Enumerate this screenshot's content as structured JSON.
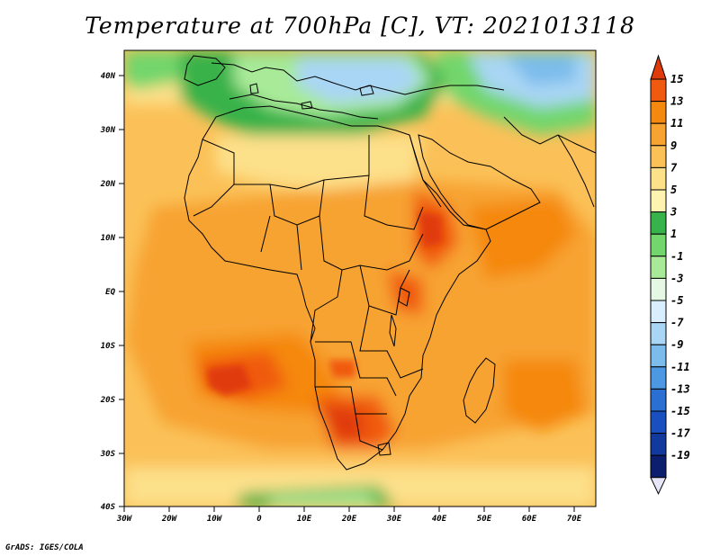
{
  "title": "Temperature at 700hPa [C], VT: 2021013118",
  "credit": "GrADS: IGES/COLA",
  "map": {
    "lat_labels": [
      "40N",
      "30N",
      "20N",
      "10N",
      "EQ",
      "10S",
      "20S",
      "30S",
      "40S"
    ],
    "lon_labels": [
      "30W",
      "20W",
      "10W",
      "0",
      "10E",
      "20E",
      "30E",
      "40E",
      "50E",
      "60E",
      "70E"
    ]
  },
  "colorbar": {
    "labels": [
      "15",
      "13",
      "11",
      "9",
      "7",
      "5",
      "3",
      "1",
      "-1",
      "-3",
      "-5",
      "-7",
      "-9",
      "-11",
      "-13",
      "-15",
      "-17",
      "-19"
    ],
    "colors": [
      "#e03a0a",
      "#f05a10",
      "#f5880f",
      "#f7a332",
      "#fbc158",
      "#fde08a",
      "#fef4b0",
      "#38b24a",
      "#72d66c",
      "#a8ea98",
      "#e4f8e4",
      "#d8eefc",
      "#a9d6f4",
      "#7cbcec",
      "#4d98e2",
      "#2c6fd3",
      "#1a4fbf",
      "#123a9e",
      "#0b1f6e",
      "#e6e6f8"
    ]
  },
  "legend_colors": {
    "land_border": "#000000",
    "ocean_warm": "#fbc158"
  }
}
